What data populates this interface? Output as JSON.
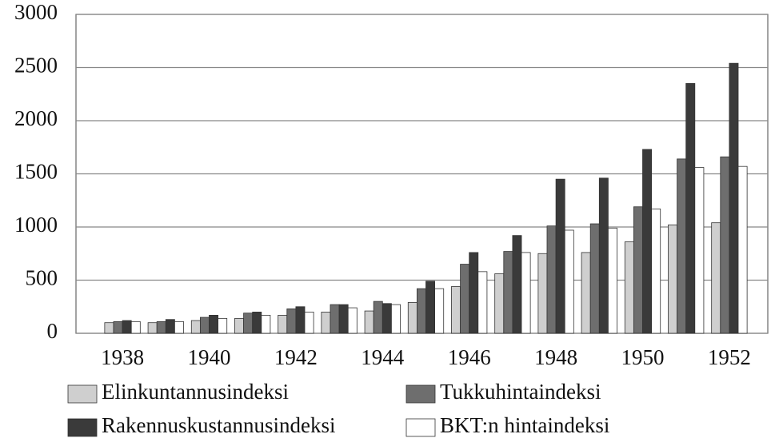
{
  "chart_data": {
    "type": "bar",
    "categories": [
      "1938",
      null,
      "1940",
      null,
      "1942",
      null,
      "1944",
      null,
      "1946",
      null,
      "1948",
      null,
      "1950",
      null,
      "1952"
    ],
    "series": [
      {
        "name": "Elinkuntannusindeksi",
        "color": "#cfcfcf",
        "values": [
          100,
          100,
          120,
          140,
          170,
          200,
          210,
          290,
          440,
          560,
          750,
          760,
          860,
          1020,
          1040
        ]
      },
      {
        "name": "Tukkuhintaindeksi",
        "color": "#6e6e6e",
        "values": [
          110,
          110,
          150,
          190,
          230,
          270,
          300,
          420,
          650,
          770,
          1010,
          1030,
          1190,
          1640,
          1660
        ]
      },
      {
        "name": "Rakennuskustannusindeksi",
        "color": "#3a3a3a",
        "values": [
          120,
          130,
          170,
          200,
          250,
          270,
          280,
          490,
          760,
          920,
          1450,
          1460,
          1730,
          2350,
          2540
        ]
      },
      {
        "name": "BKT:n hintaindeksi",
        "color": "#ffffff",
        "values": [
          110,
          110,
          140,
          170,
          200,
          240,
          270,
          420,
          580,
          760,
          970,
          990,
          1170,
          1560,
          1570
        ]
      }
    ],
    "ylim": [
      0,
      3000
    ],
    "yticks": [
      0,
      500,
      1000,
      1500,
      2000,
      2500,
      3000
    ],
    "grid": true
  }
}
